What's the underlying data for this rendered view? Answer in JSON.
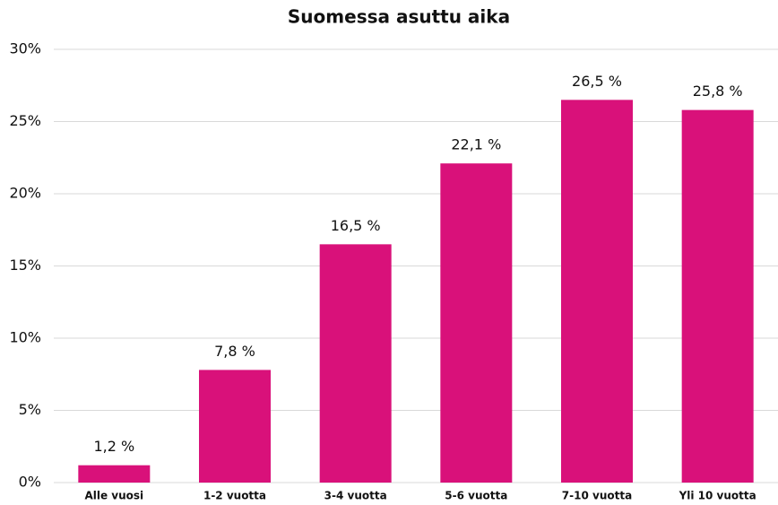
{
  "chart_data": {
    "type": "bar",
    "title": "Suomessa asuttu aika",
    "categories": [
      "Alle vuosi",
      "1-2 vuotta",
      "3-4 vuotta",
      "5-6 vuotta",
      "7-10 vuotta",
      "Yli 10 vuotta"
    ],
    "values": [
      1.2,
      7.8,
      16.5,
      22.1,
      26.5,
      25.8
    ],
    "value_labels": [
      "1,2 %",
      "7,8 %",
      "16,5 %",
      "22,1 %",
      "26,5 %",
      "25,8 %"
    ],
    "color": "#d9117a",
    "ylim": [
      0,
      30
    ],
    "yticks": [
      {
        "value": 0,
        "label": "0%"
      },
      {
        "value": 5,
        "label": "5%"
      },
      {
        "value": 10,
        "label": "10%"
      },
      {
        "value": 15,
        "label": "15%"
      },
      {
        "value": 20,
        "label": "20%"
      },
      {
        "value": 25,
        "label": "25%"
      },
      {
        "value": 30,
        "label": "30%"
      }
    ],
    "grid": true
  }
}
